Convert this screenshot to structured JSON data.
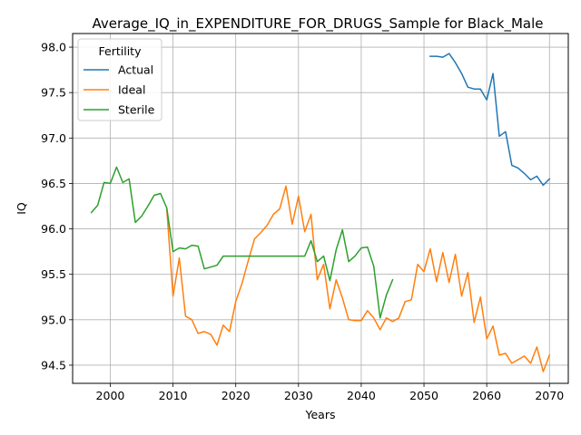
{
  "chart_data": {
    "type": "line",
    "title": "Average_IQ_in_EXPENDITURE_FOR_DRUGS_Sample for Black_Male",
    "xlabel": "Years",
    "ylabel": "IQ",
    "xlim": [
      1994,
      2073
    ],
    "ylim": [
      94.3,
      98.15
    ],
    "xticks": [
      2000,
      2010,
      2020,
      2030,
      2040,
      2050,
      2060,
      2070
    ],
    "yticks": [
      94.5,
      95.0,
      95.5,
      96.0,
      96.5,
      97.0,
      97.5,
      98.0
    ],
    "xtick_labels": [
      "2000",
      "2010",
      "2020",
      "2030",
      "2040",
      "2050",
      "2060",
      "2070"
    ],
    "ytick_labels": [
      "94.5",
      "95.0",
      "95.5",
      "96.0",
      "96.5",
      "97.0",
      "97.5",
      "98.0"
    ],
    "grid": true,
    "legend": {
      "title": "Fertility",
      "placement": "top-left"
    },
    "series": [
      {
        "name": "Actual",
        "color": "#1f77b4",
        "x": [
          2051,
          2052,
          2053,
          2054,
          2055,
          2056,
          2057,
          2058,
          2059,
          2060,
          2061,
          2062,
          2063,
          2064,
          2065,
          2066,
          2067,
          2068,
          2069,
          2070
        ],
        "values": [
          97.9,
          97.9,
          97.89,
          97.93,
          97.83,
          97.71,
          97.56,
          97.54,
          97.54,
          97.42,
          97.71,
          97.02,
          97.07,
          96.7,
          96.67,
          96.61,
          96.54,
          96.58,
          96.48,
          96.55
        ]
      },
      {
        "name": "Ideal",
        "color": "#ff7f0e",
        "x": [
          2009,
          2010,
          2011,
          2012,
          2013,
          2014,
          2015,
          2016,
          2017,
          2018,
          2019,
          2020,
          2021,
          2022,
          2023,
          2024,
          2025,
          2026,
          2027,
          2028,
          2029,
          2030,
          2031,
          2032,
          2033,
          2034,
          2035,
          2036,
          2037,
          2038,
          2039,
          2040,
          2041,
          2042,
          2043,
          2044,
          2045,
          2046,
          2047,
          2048,
          2049,
          2050,
          2051,
          2052,
          2053,
          2054,
          2055,
          2056,
          2057,
          2058,
          2059,
          2060,
          2061,
          2062,
          2063,
          2064,
          2065,
          2066,
          2067,
          2068,
          2069,
          2070
        ],
        "values": [
          96.22,
          95.26,
          95.68,
          95.04,
          95.0,
          94.85,
          94.87,
          94.84,
          94.72,
          94.94,
          94.87,
          95.2,
          95.4,
          95.65,
          95.89,
          95.96,
          96.04,
          96.16,
          96.22,
          96.47,
          96.05,
          96.36,
          95.97,
          96.16,
          95.44,
          95.61,
          95.12,
          95.44,
          95.24,
          95.0,
          94.99,
          94.99,
          95.1,
          95.02,
          94.89,
          95.02,
          94.98,
          95.02,
          95.2,
          95.22,
          95.61,
          95.53,
          95.78,
          95.42,
          95.74,
          95.41,
          95.72,
          95.26,
          95.52,
          94.97,
          95.25,
          94.79,
          94.93,
          94.61,
          94.63,
          94.52,
          94.56,
          94.6,
          94.52,
          94.7,
          94.43,
          94.61
        ]
      },
      {
        "name": "Sterile",
        "color": "#2ca02c",
        "x": [
          1997,
          1998,
          1999,
          2000,
          2001,
          2002,
          2003,
          2004,
          2005,
          2006,
          2007,
          2008,
          2009,
          2010,
          2011,
          2012,
          2013,
          2014,
          2015,
          2016,
          2017,
          2018,
          2019,
          2020,
          2021,
          2022,
          2023,
          2024,
          2025,
          2026,
          2027,
          2028,
          2029,
          2030,
          2031,
          2032,
          2033,
          2034,
          2035,
          2036,
          2037,
          2038,
          2039,
          2040,
          2041,
          2042,
          2043,
          2044,
          2045
        ],
        "values": [
          96.18,
          96.26,
          96.51,
          96.5,
          96.68,
          96.51,
          96.55,
          96.07,
          96.14,
          96.25,
          96.37,
          96.39,
          96.23,
          95.75,
          95.79,
          95.78,
          95.82,
          95.81,
          95.56,
          95.58,
          95.6,
          95.7,
          95.7,
          95.7,
          95.7,
          95.7,
          95.7,
          95.7,
          95.7,
          95.7,
          95.7,
          95.7,
          95.7,
          95.7,
          95.7,
          95.87,
          95.64,
          95.7,
          95.43,
          95.77,
          95.99,
          95.64,
          95.7,
          95.79,
          95.8,
          95.59,
          95.02,
          95.27,
          95.44
        ]
      }
    ]
  }
}
